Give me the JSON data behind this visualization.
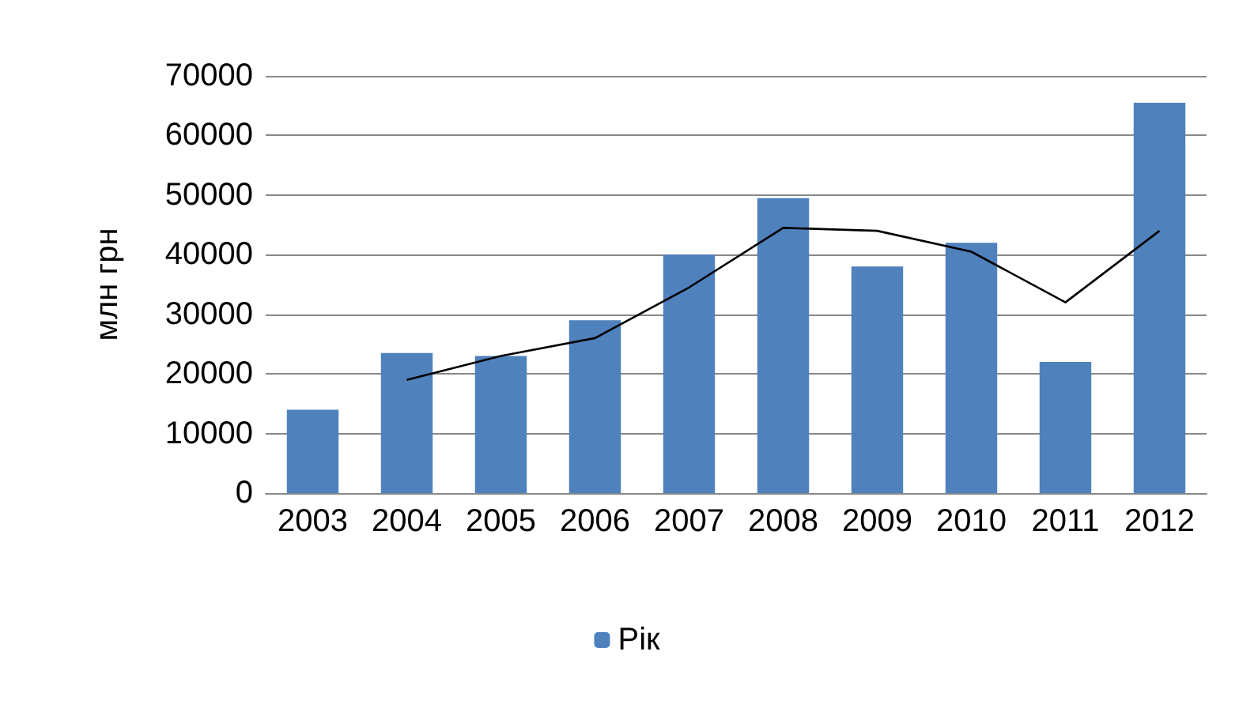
{
  "chart_data": {
    "type": "bar",
    "ylabel": "млн грн",
    "categories": [
      "2003",
      "2004",
      "2005",
      "2006",
      "2007",
      "2008",
      "2009",
      "2010",
      "2011",
      "2012"
    ],
    "series": [
      {
        "name": "Рік",
        "color": "#4f81bd",
        "values": [
          14000,
          23500,
          23000,
          29000,
          40000,
          49500,
          38000,
          42000,
          22000,
          65500
        ]
      },
      {
        "type": "line",
        "color": "#000000",
        "marker": "none",
        "line_style": "solid",
        "values": [
          null,
          19000,
          23000,
          26000,
          34500,
          44500,
          44000,
          40500,
          32000,
          44000
        ]
      }
    ],
    "ylim": [
      0,
      70000
    ],
    "yticks": [
      0,
      10000,
      20000,
      30000,
      40000,
      50000,
      60000,
      70000
    ],
    "grid": "y",
    "legend": "bottom"
  }
}
